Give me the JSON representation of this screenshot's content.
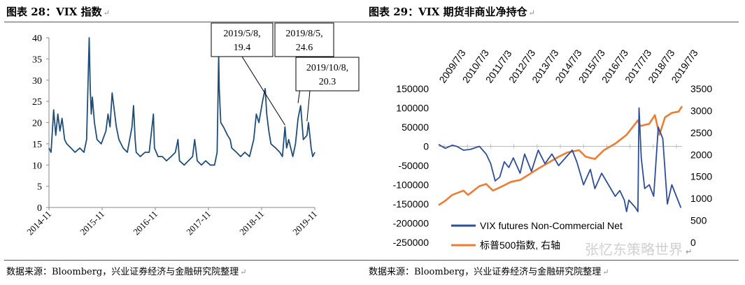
{
  "left_panel": {
    "title": "图表 28：VIX 指数",
    "source": "数据来源：Bloomberg，兴业证券经济与金融研究院整理"
  },
  "right_panel": {
    "title": "图表 29：VIX 期货非商业净持仓",
    "source": "数据来源：Bloomberg，兴业证券经济与金融研究院整理"
  },
  "watermark": "张忆东策略世界",
  "colors": {
    "navy": "#1f4e79",
    "orange": "#ed7d31",
    "blue": "#2e4d9a"
  },
  "chart_data": [
    {
      "type": "line",
      "title": "VIX 指数",
      "xlabel": "",
      "ylabel": "",
      "ylim": [
        0,
        40
      ],
      "yticks": [
        "0",
        "5",
        "10",
        "15",
        "20",
        "25",
        "30",
        "35",
        "40"
      ],
      "xticks": [
        "2014-11",
        "2015-11",
        "2016-11",
        "2017-11",
        "2018-11",
        "2019-11"
      ],
      "x_start": 2014.83,
      "x_end": 2019.92,
      "series": [
        {
          "name": "VIX",
          "x": [
            2014.83,
            2014.87,
            2014.92,
            2014.96,
            2015.0,
            2015.04,
            2015.08,
            2015.13,
            2015.17,
            2015.25,
            2015.33,
            2015.42,
            2015.5,
            2015.55,
            2015.6,
            2015.62,
            2015.64,
            2015.66,
            2015.7,
            2015.75,
            2015.83,
            2015.92,
            2015.96,
            2016.0,
            2016.04,
            2016.08,
            2016.12,
            2016.17,
            2016.25,
            2016.33,
            2016.42,
            2016.45,
            2016.48,
            2016.5,
            2016.58,
            2016.67,
            2016.75,
            2016.83,
            2016.85,
            2016.92,
            2017.0,
            2017.08,
            2017.17,
            2017.25,
            2017.3,
            2017.33,
            2017.42,
            2017.5,
            2017.58,
            2017.62,
            2017.67,
            2017.75,
            2017.83,
            2017.92,
            2018.0,
            2018.05,
            2018.08,
            2018.09,
            2018.12,
            2018.17,
            2018.25,
            2018.3,
            2018.33,
            2018.42,
            2018.5,
            2018.58,
            2018.67,
            2018.75,
            2018.8,
            2018.85,
            2018.92,
            2018.97,
            2019.0,
            2019.04,
            2019.08,
            2019.17,
            2019.25,
            2019.3,
            2019.35,
            2019.38,
            2019.42,
            2019.5,
            2019.55,
            2019.6,
            2019.65,
            2019.7,
            2019.77,
            2019.8,
            2019.85,
            2019.88,
            2019.92
          ],
          "values": [
            14,
            13,
            23,
            17,
            22,
            18,
            21,
            16,
            15,
            14,
            13,
            14,
            13,
            16,
            40,
            28,
            22,
            26,
            20,
            16,
            15,
            18,
            22,
            19,
            27,
            23,
            19,
            16,
            14,
            13,
            19,
            24,
            16,
            13,
            12,
            13,
            13,
            22,
            14,
            12,
            12,
            11,
            12,
            13,
            16,
            11,
            10,
            11,
            12,
            16,
            11,
            10,
            11,
            10,
            10,
            13,
            36,
            28,
            20,
            19,
            17,
            16,
            14,
            13,
            12,
            13,
            12,
            16,
            22,
            20,
            25,
            28,
            22,
            18,
            15,
            14,
            13,
            12,
            19,
            14,
            16,
            12,
            15,
            21,
            24,
            16,
            17,
            20,
            14,
            12,
            13
          ]
        }
      ],
      "annotations": [
        {
          "label": "2019/5/8, 19.4",
          "x": 2019.35,
          "y": 19.4
        },
        {
          "label": "2019/8/5, 24.6",
          "x": 2019.6,
          "y": 24.6
        },
        {
          "label": "2019/10/8, 20.3",
          "x": 2019.77,
          "y": 20.3
        }
      ]
    },
    {
      "type": "line",
      "title": "VIX 期货非商业净持仓",
      "xlabel": "",
      "ylabel": "",
      "ylim": [
        -250000,
        150000
      ],
      "y2lim": [
        0,
        3500
      ],
      "yticks": [
        "-250000",
        "-200000",
        "-150000",
        "-100000",
        "-50000",
        "0",
        "50000",
        "100000",
        "150000"
      ],
      "y2ticks": [
        "0",
        "500",
        "1000",
        "1500",
        "2000",
        "2500",
        "3000",
        "3500"
      ],
      "xticks": [
        "2009/7/3",
        "2010/7/3",
        "2011/7/3",
        "2012/7/3",
        "2013/7/3",
        "2014/7/3",
        "2015/7/3",
        "2016/7/3",
        "2017/7/3",
        "2018/7/3",
        "2019/7/3"
      ],
      "x_start": 2009.2,
      "x_end": 2019.95,
      "legend": [
        "VIX futures Non-Commercial Net",
        "标普500指数, 右轴"
      ],
      "series": [
        {
          "name": "VIX futures Non-Commercial Net",
          "axis": "left",
          "x": [
            2009.2,
            2009.5,
            2009.8,
            2010.0,
            2010.3,
            2010.6,
            2011.0,
            2011.3,
            2011.5,
            2011.7,
            2011.9,
            2012.1,
            2012.3,
            2012.5,
            2012.8,
            2013.0,
            2013.3,
            2013.6,
            2013.9,
            2014.2,
            2014.5,
            2014.8,
            2015.1,
            2015.3,
            2015.6,
            2015.9,
            2016.1,
            2016.4,
            2016.7,
            2017.0,
            2017.2,
            2017.4,
            2017.5,
            2017.6,
            2017.75,
            2017.9,
            2018.0,
            2018.05,
            2018.15,
            2018.3,
            2018.5,
            2018.7,
            2018.9,
            2019.1,
            2019.3,
            2019.5,
            2019.7,
            2019.9
          ],
          "values": [
            5000,
            -5000,
            3000,
            0,
            -10000,
            -8000,
            0,
            -20000,
            -45000,
            -90000,
            -80000,
            -40000,
            -55000,
            -30000,
            -70000,
            -20000,
            -65000,
            -10000,
            -45000,
            -20000,
            -50000,
            -30000,
            -10000,
            -40000,
            -100000,
            -60000,
            -110000,
            -70000,
            -100000,
            -130000,
            -115000,
            -140000,
            -170000,
            -140000,
            -150000,
            -160000,
            -170000,
            100000,
            -30000,
            -110000,
            -100000,
            -130000,
            50000,
            20000,
            -150000,
            -100000,
            -130000,
            -160000
          ]
        },
        {
          "name": "标普500指数, 右轴",
          "axis": "right",
          "x": [
            2009.2,
            2009.5,
            2009.8,
            2010.3,
            2010.5,
            2011.0,
            2011.3,
            2011.6,
            2011.9,
            2012.4,
            2012.8,
            2013.2,
            2013.6,
            2014.0,
            2014.5,
            2014.9,
            2015.4,
            2015.7,
            2016.1,
            2016.5,
            2017.0,
            2017.5,
            2018.0,
            2018.1,
            2018.5,
            2018.75,
            2018.95,
            2019.2,
            2019.5,
            2019.8,
            2019.95
          ],
          "values": [
            850,
            950,
            1080,
            1180,
            1080,
            1280,
            1330,
            1180,
            1250,
            1380,
            1420,
            1550,
            1680,
            1800,
            1950,
            2050,
            2100,
            1950,
            1900,
            2100,
            2250,
            2450,
            2780,
            2650,
            2700,
            2900,
            2450,
            2850,
            2950,
            2980,
            3100
          ]
        }
      ]
    }
  ]
}
